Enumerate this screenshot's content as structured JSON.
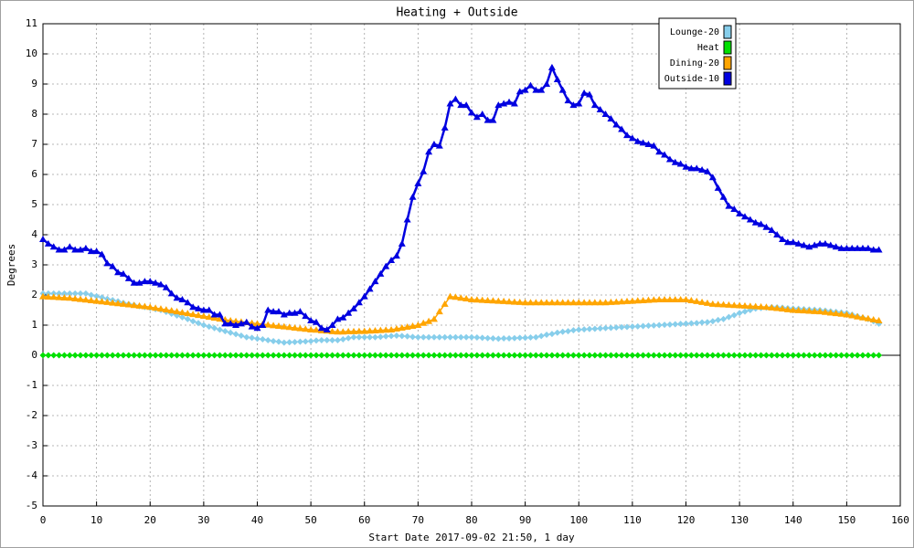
{
  "chart_data": {
    "type": "line",
    "title": "Heating + Outside",
    "xlabel": "Start Date 2017-09-02 21:50, 1 day",
    "ylabel": "Degrees",
    "x": [
      0,
      1,
      2,
      3,
      4,
      5,
      6,
      7,
      8,
      9,
      10,
      11,
      12,
      13,
      14,
      15,
      16,
      17,
      18,
      19,
      20,
      21,
      22,
      23,
      24,
      25,
      26,
      27,
      28,
      29,
      30,
      31,
      32,
      33,
      34,
      35,
      36,
      37,
      38,
      39,
      40,
      41,
      42,
      43,
      44,
      45,
      46,
      47,
      48,
      49,
      50,
      51,
      52,
      53,
      54,
      55,
      56,
      57,
      58,
      59,
      60,
      61,
      62,
      63,
      64,
      65,
      66,
      67,
      68,
      69,
      70,
      71,
      72,
      73,
      74,
      75,
      76,
      77,
      78,
      79,
      80,
      81,
      82,
      83,
      84,
      85,
      86,
      87,
      88,
      89,
      90,
      91,
      92,
      93,
      94,
      95,
      96,
      97,
      98,
      99,
      100,
      101,
      102,
      103,
      104,
      105,
      106,
      107,
      108,
      109,
      110,
      111,
      112,
      113,
      114,
      115,
      116,
      117,
      118,
      119,
      120,
      121,
      122,
      123,
      124,
      125,
      126,
      127,
      128,
      129,
      130,
      131,
      132,
      133,
      134,
      135,
      136,
      137,
      138,
      139,
      140,
      141,
      142,
      143,
      144,
      145,
      146,
      147,
      148,
      149,
      150,
      151,
      152,
      153,
      154,
      155,
      156
    ],
    "series": [
      {
        "name": "Lounge-20",
        "color": "#87ceeb",
        "marker": "diamond",
        "values": [
          2.05,
          2.05,
          2.05,
          2.05,
          2.05,
          2.05,
          2.05,
          2.05,
          2.05,
          2.0,
          1.96,
          1.92,
          1.87,
          1.83,
          1.79,
          1.74,
          1.7,
          1.67,
          1.63,
          1.6,
          1.57,
          1.53,
          1.5,
          1.44,
          1.38,
          1.32,
          1.26,
          1.2,
          1.13,
          1.07,
          1.0,
          0.95,
          0.9,
          0.85,
          0.8,
          0.75,
          0.7,
          0.65,
          0.6,
          0.58,
          0.55,
          0.53,
          0.5,
          0.47,
          0.45,
          0.42,
          0.43,
          0.44,
          0.45,
          0.46,
          0.47,
          0.49,
          0.5,
          0.5,
          0.5,
          0.5,
          0.53,
          0.57,
          0.6,
          0.6,
          0.6,
          0.6,
          0.6,
          0.61,
          0.63,
          0.64,
          0.65,
          0.64,
          0.63,
          0.61,
          0.6,
          0.6,
          0.6,
          0.6,
          0.6,
          0.6,
          0.6,
          0.6,
          0.6,
          0.6,
          0.6,
          0.59,
          0.58,
          0.57,
          0.56,
          0.55,
          0.56,
          0.56,
          0.57,
          0.58,
          0.58,
          0.59,
          0.6,
          0.64,
          0.68,
          0.71,
          0.75,
          0.78,
          0.8,
          0.83,
          0.85,
          0.86,
          0.87,
          0.88,
          0.89,
          0.9,
          0.91,
          0.92,
          0.93,
          0.94,
          0.95,
          0.96,
          0.97,
          0.98,
          0.99,
          1.0,
          1.01,
          1.02,
          1.03,
          1.04,
          1.05,
          1.06,
          1.07,
          1.09,
          1.1,
          1.13,
          1.17,
          1.2,
          1.27,
          1.33,
          1.4,
          1.45,
          1.5,
          1.55,
          1.57,
          1.58,
          1.6,
          1.59,
          1.58,
          1.56,
          1.55,
          1.54,
          1.53,
          1.52,
          1.51,
          1.5,
          1.48,
          1.46,
          1.44,
          1.42,
          1.4,
          1.35,
          1.3,
          1.25,
          1.2,
          1.13,
          1.05
        ]
      },
      {
        "name": "Heat",
        "color": "#00e000",
        "marker": "diamond",
        "values": [
          0,
          0,
          0,
          0,
          0,
          0,
          0,
          0,
          0,
          0,
          0,
          0,
          0,
          0,
          0,
          0,
          0,
          0,
          0,
          0,
          0,
          0,
          0,
          0,
          0,
          0,
          0,
          0,
          0,
          0,
          0,
          0,
          0,
          0,
          0,
          0,
          0,
          0,
          0,
          0,
          0,
          0,
          0,
          0,
          0,
          0,
          0,
          0,
          0,
          0,
          0,
          0,
          0,
          0,
          0,
          0,
          0,
          0,
          0,
          0,
          0,
          0,
          0,
          0,
          0,
          0,
          0,
          0,
          0,
          0,
          0,
          0,
          0,
          0,
          0,
          0,
          0,
          0,
          0,
          0,
          0,
          0,
          0,
          0,
          0,
          0,
          0,
          0,
          0,
          0,
          0,
          0,
          0,
          0,
          0,
          0,
          0,
          0,
          0,
          0,
          0,
          0,
          0,
          0,
          0,
          0,
          0,
          0,
          0,
          0,
          0,
          0,
          0,
          0,
          0,
          0,
          0,
          0,
          0,
          0,
          0,
          0,
          0,
          0,
          0,
          0,
          0,
          0,
          0,
          0,
          0,
          0,
          0,
          0,
          0,
          0,
          0,
          0,
          0,
          0,
          0,
          0,
          0,
          0,
          0,
          0,
          0,
          0,
          0,
          0,
          0,
          0,
          0,
          0,
          0,
          0,
          0
        ]
      },
      {
        "name": "Dining-20",
        "color": "#ffa500",
        "marker": "triangle",
        "values": [
          1.95,
          1.94,
          1.93,
          1.92,
          1.91,
          1.9,
          1.88,
          1.86,
          1.84,
          1.82,
          1.8,
          1.78,
          1.76,
          1.74,
          1.72,
          1.7,
          1.68,
          1.66,
          1.64,
          1.62,
          1.6,
          1.57,
          1.54,
          1.51,
          1.48,
          1.45,
          1.42,
          1.39,
          1.36,
          1.33,
          1.3,
          1.27,
          1.24,
          1.21,
          1.18,
          1.15,
          1.13,
          1.11,
          1.09,
          1.07,
          1.05,
          1.03,
          1.01,
          0.99,
          0.97,
          0.95,
          0.93,
          0.91,
          0.89,
          0.87,
          0.85,
          0.84,
          0.82,
          0.81,
          0.79,
          0.78,
          0.78,
          0.79,
          0.79,
          0.8,
          0.8,
          0.81,
          0.82,
          0.83,
          0.84,
          0.85,
          0.88,
          0.91,
          0.94,
          0.97,
          1.0,
          1.07,
          1.13,
          1.2,
          1.45,
          1.7,
          1.95,
          1.93,
          1.9,
          1.88,
          1.85,
          1.84,
          1.83,
          1.82,
          1.81,
          1.8,
          1.79,
          1.78,
          1.77,
          1.76,
          1.75,
          1.75,
          1.75,
          1.75,
          1.75,
          1.75,
          1.75,
          1.75,
          1.75,
          1.75,
          1.75,
          1.75,
          1.75,
          1.75,
          1.75,
          1.75,
          1.76,
          1.77,
          1.78,
          1.79,
          1.8,
          1.81,
          1.82,
          1.83,
          1.84,
          1.85,
          1.85,
          1.85,
          1.85,
          1.85,
          1.85,
          1.82,
          1.79,
          1.76,
          1.73,
          1.7,
          1.69,
          1.68,
          1.67,
          1.66,
          1.65,
          1.64,
          1.63,
          1.62,
          1.61,
          1.6,
          1.58,
          1.56,
          1.54,
          1.52,
          1.5,
          1.49,
          1.48,
          1.47,
          1.46,
          1.45,
          1.43,
          1.41,
          1.39,
          1.37,
          1.35,
          1.32,
          1.28,
          1.25,
          1.22,
          1.18,
          1.15
        ]
      },
      {
        "name": "Outside-10",
        "color": "#0000e0",
        "marker": "triangle",
        "line_width": 2.5,
        "values": [
          3.85,
          3.7,
          3.6,
          3.5,
          3.5,
          3.6,
          3.5,
          3.5,
          3.55,
          3.45,
          3.45,
          3.35,
          3.05,
          2.95,
          2.75,
          2.7,
          2.55,
          2.4,
          2.4,
          2.45,
          2.45,
          2.4,
          2.35,
          2.25,
          2.05,
          1.9,
          1.85,
          1.75,
          1.6,
          1.55,
          1.5,
          1.5,
          1.35,
          1.35,
          1.05,
          1.05,
          1.0,
          1.05,
          1.1,
          0.95,
          0.9,
          1.0,
          1.5,
          1.45,
          1.45,
          1.35,
          1.4,
          1.4,
          1.45,
          1.3,
          1.15,
          1.1,
          0.9,
          0.85,
          1.0,
          1.2,
          1.25,
          1.4,
          1.55,
          1.75,
          1.95,
          2.2,
          2.45,
          2.7,
          2.95,
          3.15,
          3.3,
          3.7,
          4.5,
          5.25,
          5.7,
          6.1,
          6.75,
          7.0,
          6.95,
          7.55,
          8.35,
          8.5,
          8.3,
          8.3,
          8.05,
          7.9,
          8.0,
          7.8,
          7.8,
          8.3,
          8.35,
          8.4,
          8.35,
          8.75,
          8.8,
          8.95,
          8.8,
          8.8,
          9.0,
          9.55,
          9.15,
          8.8,
          8.45,
          8.3,
          8.35,
          8.7,
          8.65,
          8.3,
          8.15,
          8.0,
          7.85,
          7.65,
          7.5,
          7.3,
          7.2,
          7.1,
          7.05,
          7.0,
          6.95,
          6.75,
          6.65,
          6.5,
          6.4,
          6.35,
          6.25,
          6.2,
          6.2,
          6.15,
          6.1,
          5.9,
          5.55,
          5.25,
          4.95,
          4.85,
          4.7,
          4.6,
          4.5,
          4.4,
          4.35,
          4.25,
          4.15,
          4.0,
          3.85,
          3.75,
          3.75,
          3.7,
          3.65,
          3.6,
          3.65,
          3.7,
          3.7,
          3.65,
          3.6,
          3.55,
          3.55,
          3.55,
          3.55,
          3.55,
          3.55,
          3.5,
          3.5
        ]
      }
    ],
    "xlim": [
      0,
      160
    ],
    "xticks": [
      0,
      10,
      20,
      30,
      40,
      50,
      60,
      70,
      80,
      90,
      100,
      110,
      120,
      130,
      140,
      150,
      160
    ],
    "ylim": [
      -5,
      11
    ],
    "yticks": [
      -5,
      -4,
      -3,
      -2,
      -1,
      0,
      1,
      2,
      3,
      4,
      5,
      6,
      7,
      8,
      9,
      10,
      11
    ],
    "grid": true,
    "legend": "top-right"
  }
}
